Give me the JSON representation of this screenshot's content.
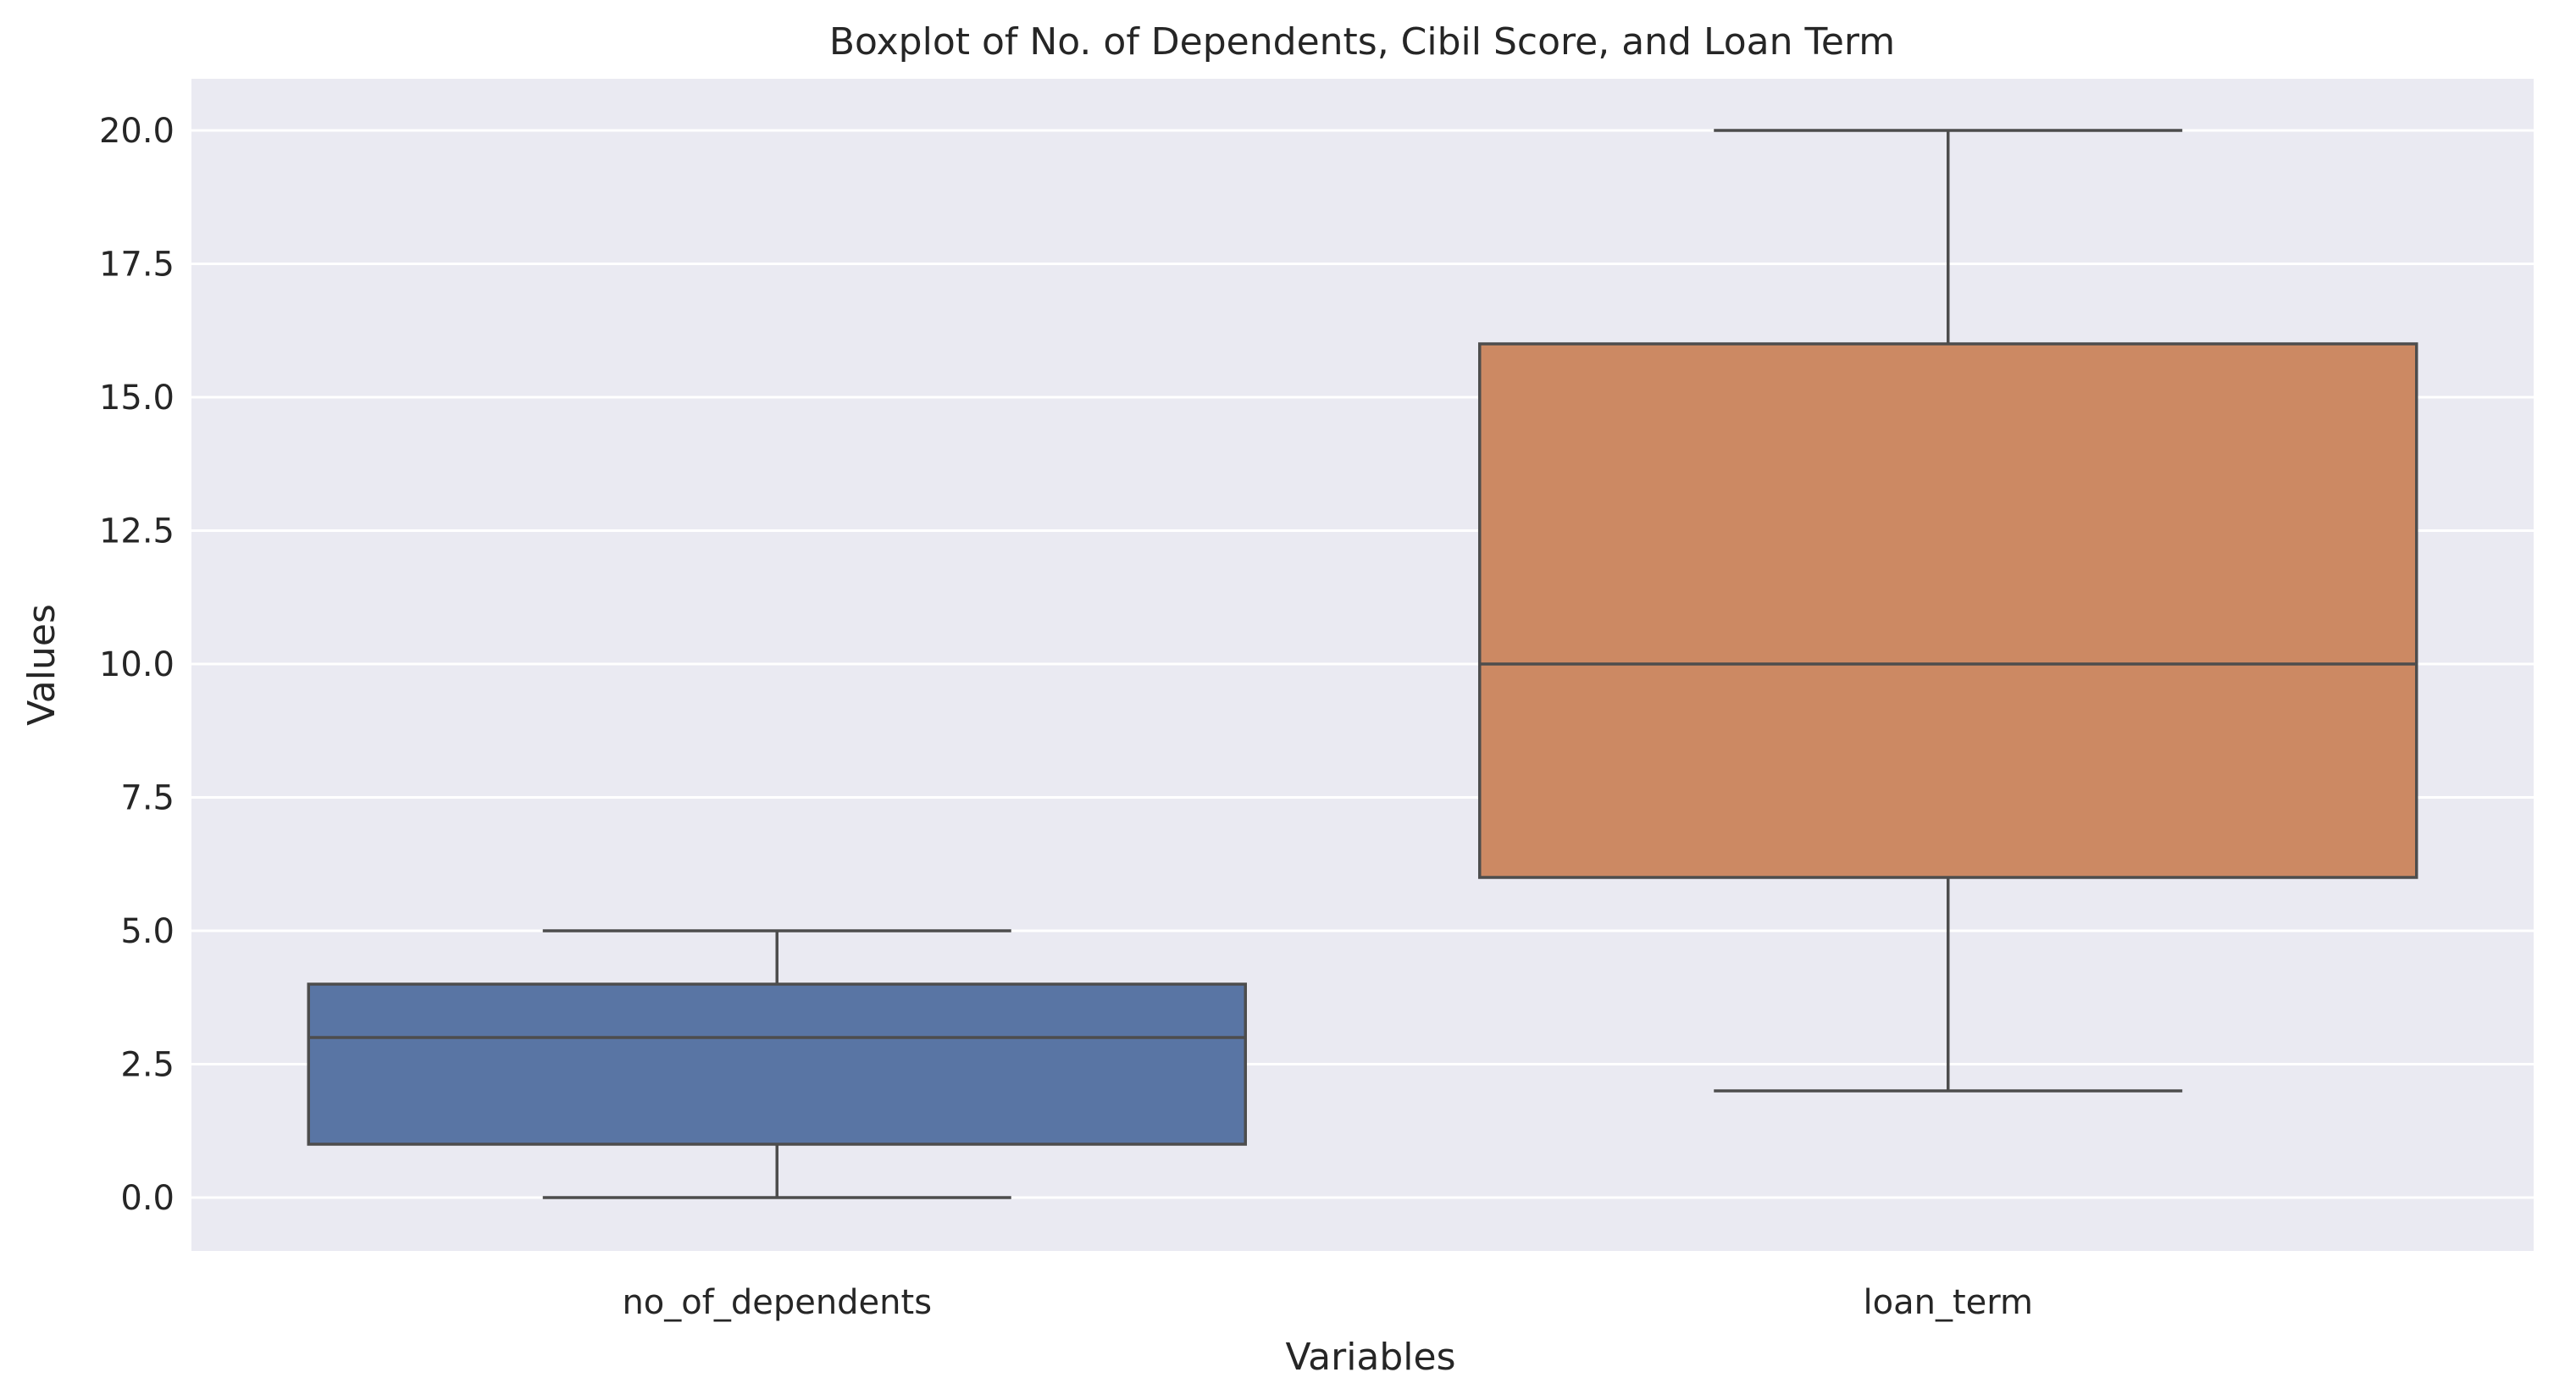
{
  "chart_data": {
    "type": "boxplot",
    "title": "Boxplot of No. of Dependents, Cibil Score, and Loan Term",
    "xlabel": "Variables",
    "ylabel": "Values",
    "ylim": [
      -1.0,
      21.0
    ],
    "yticks": [
      0.0,
      2.5,
      5.0,
      7.5,
      10.0,
      12.5,
      15.0,
      17.5,
      20.0
    ],
    "ytick_labels": [
      "0.0",
      "2.5",
      "5.0",
      "7.5",
      "10.0",
      "12.5",
      "15.0",
      "17.5",
      "20.0"
    ],
    "grid": true,
    "categories": [
      "no_of_dependents",
      "loan_term"
    ],
    "boxes": [
      {
        "category": "no_of_dependents",
        "whisker_low": 0,
        "q1": 1,
        "median": 3,
        "q3": 4,
        "whisker_high": 5,
        "color": "#5975a4"
      },
      {
        "category": "loan_term",
        "whisker_low": 2,
        "q1": 6,
        "median": 10,
        "q3": 16,
        "whisker_high": 20,
        "color": "#cc8963"
      }
    ]
  },
  "colors": {
    "plot_background": "#eaeaf2",
    "grid": "#ffffff",
    "line": "#4d4d4d"
  }
}
